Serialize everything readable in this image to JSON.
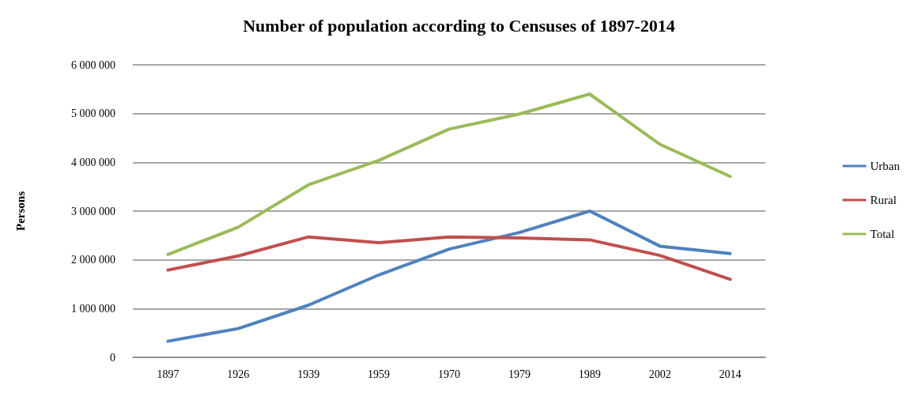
{
  "chart_data": {
    "type": "line",
    "title": "Number of population according to Censuses of 1897-2014",
    "ylabel": "Persons",
    "categories": [
      "1897",
      "1926",
      "1939",
      "1959",
      "1970",
      "1979",
      "1989",
      "2002",
      "2014"
    ],
    "series": [
      {
        "name": "Urban",
        "color": "#4f81bd",
        "values": [
          330000,
          590000,
          1070000,
          1690000,
          2220000,
          2560000,
          3000000,
          2280000,
          2130000
        ]
      },
      {
        "name": "Rural",
        "color": "#c0504d",
        "values": [
          1790000,
          2080000,
          2470000,
          2350000,
          2470000,
          2450000,
          2410000,
          2090000,
          1600000
        ]
      },
      {
        "name": "Total",
        "color": "#9bbb59",
        "values": [
          2110000,
          2670000,
          3540000,
          4040000,
          4680000,
          4990000,
          5400000,
          4370000,
          3710000
        ]
      }
    ],
    "ylim": [
      0,
      6000000
    ],
    "yticks": [
      0,
      1000000,
      2000000,
      3000000,
      4000000,
      5000000,
      6000000
    ],
    "grid": "y",
    "legend": "right",
    "marker": "none",
    "line_style": "solid"
  }
}
